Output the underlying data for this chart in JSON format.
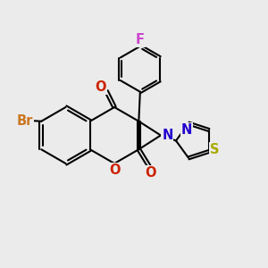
{
  "background_color": "#ebebeb",
  "bond_color": "#000000",
  "bond_width": 1.5,
  "figsize": [
    3.0,
    3.0
  ],
  "dpi": 100,
  "label_Br": {
    "text": "Br",
    "color": "#cc7722"
  },
  "label_O1": {
    "text": "O",
    "color": "#cc2200"
  },
  "label_O2": {
    "text": "O",
    "color": "#cc2200"
  },
  "label_O3": {
    "text": "O",
    "color": "#cc2200"
  },
  "label_N": {
    "text": "N",
    "color": "#2200cc"
  },
  "label_S": {
    "text": "S",
    "color": "#aaaa00"
  },
  "label_Nth": {
    "text": "N",
    "color": "#2200cc"
  },
  "label_F": {
    "text": "F",
    "color": "#cc44cc"
  }
}
